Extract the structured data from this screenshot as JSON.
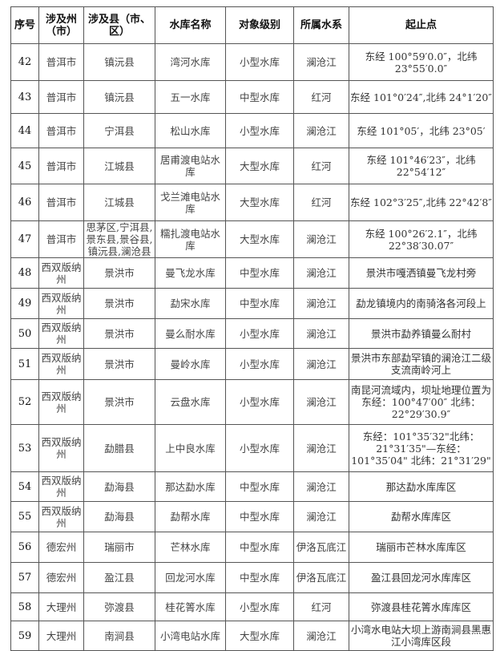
{
  "headers": [
    "序号",
    "涉及州（市）",
    "涉及县（市、区）",
    "水库名称",
    "对象级别",
    "所属水系",
    "起止点"
  ],
  "rows": [
    [
      "42",
      "普洱市",
      "镇沅县",
      "湾河水库",
      "小型水库",
      "澜沧江",
      "东经 100°59′0.0″，北纬 23°55′0.0″"
    ],
    [
      "43",
      "普洱市",
      "镇沅县",
      "五一水库",
      "中型水库",
      "红河",
      "东经 101°0′24″,北纬 24°1′20″"
    ],
    [
      "44",
      "普洱市",
      "宁洱县",
      "松山水库",
      "小型水库",
      "澜沧江",
      "东经 101°05′，北纬 23°05′"
    ],
    [
      "45",
      "普洱市",
      "江城县",
      "居甫渡电站水库",
      "大型水库",
      "红河",
      "东经 101°46′23″，北纬 22°54′12″"
    ],
    [
      "46",
      "普洱市",
      "江城县",
      "戈兰滩电站水库",
      "大型水库",
      "红河",
      "东经 102°3′25″,北纬 22°42′8″"
    ],
    [
      "47",
      "普洱市",
      "思茅区,宁洱县,景东县,景谷县,镇沅县,澜沧县",
      "糯扎渡电站水库",
      "大型水库",
      "澜沧江",
      "东经 100°26′2.1″，北纬 22°38′30.07″"
    ],
    [
      "48",
      "西双版纳州",
      "景洪市",
      "曼飞龙水库",
      "中型水库",
      "澜沧江",
      "景洪市嘎洒镇曼飞龙村旁"
    ],
    [
      "49",
      "西双版纳州",
      "景洪市",
      "勐宋水库",
      "中型水库",
      "澜沧江",
      "勐龙镇境内的南骑洛各河段上"
    ],
    [
      "50",
      "西双版纳州",
      "景洪市",
      "曼么耐水库",
      "小型水库",
      "澜沧江",
      "景洪市勐养镇曼么耐村"
    ],
    [
      "51",
      "西双版纳州",
      "景洪市",
      "曼岭水库",
      "小型水库",
      "澜沧江",
      "景洪市东部勐罕镇的澜沧江二级支流南岭河上"
    ],
    [
      "52",
      "西双版纳州",
      "景洪市",
      "云盘水库",
      "小型水库",
      "澜沧江",
      "南昆河流域内，坝址地理位置为 东经：100°47′00″ 北纬：22°29′30.9″"
    ],
    [
      "53",
      "西双版纳州",
      "勐腊县",
      "上中良水库",
      "小型水库",
      "澜沧江",
      "东经：101°35′32\"北纬：21°31′35\"—东经：101°35′04\" 北纬：21°31′29\""
    ],
    [
      "54",
      "西双版纳州",
      "勐海县",
      "那达勐水库",
      "中型水库",
      "澜沧江",
      "那达勐水库库区"
    ],
    [
      "55",
      "西双版纳州",
      "勐海县",
      "勐帮水库",
      "中型水库",
      "澜沧江",
      "勐帮水库库区"
    ],
    [
      "56",
      "德宏州",
      "瑞丽市",
      "芒林水库",
      "中型水库",
      "伊洛瓦底江",
      "瑞丽市芒林水库库区"
    ],
    [
      "57",
      "德宏州",
      "盈江县",
      "回龙河水库",
      "中型水库",
      "伊洛瓦底江",
      "盈江县回龙河水库库区"
    ],
    [
      "58",
      "大理州",
      "弥渡县",
      "桂花箐水库",
      "小型水库",
      "红河",
      "弥渡县桂花箐水库库区"
    ],
    [
      "59",
      "大理州",
      "南涧县",
      "小湾电站水库",
      "大型水库",
      "澜沧江",
      "小湾水电站大坝上游南涧县黑惠江小湾库区段"
    ]
  ]
}
